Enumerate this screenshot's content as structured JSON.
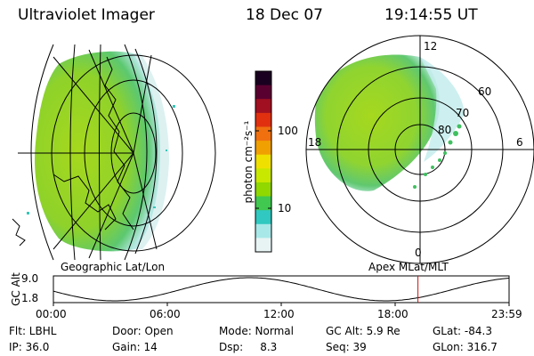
{
  "header": {
    "title": "Ultraviolet Imager",
    "date": "18 Dec 07",
    "time": "19:14:55 UT"
  },
  "colorbar": {
    "unit_label": "photon cm⁻²s⁻¹",
    "ticks": [
      "100",
      "10"
    ],
    "colors": [
      "#1a0020",
      "#5a0030",
      "#a01020",
      "#e03010",
      "#f07010",
      "#f0a000",
      "#f0e000",
      "#c8e800",
      "#90d800",
      "#40c850",
      "#30c8c0",
      "#a8e8e8",
      "#e8f4f4"
    ]
  },
  "left_map": {
    "caption": "Geographic Lat/Lon",
    "fill_color": "#9ad61a"
  },
  "right_map": {
    "caption": "Apex MLat/MLT",
    "labels": {
      "mlt_top": "12",
      "mlt_bottom": "0",
      "mlt_left": "18",
      "mlt_right": "6",
      "lat_60": "60",
      "lat_70": "70",
      "lat_80": "80"
    }
  },
  "timeline": {
    "axis_label": "GC Alt",
    "y_ticks": [
      "9.0",
      "1.8"
    ],
    "x_ticks": [
      "00:00",
      "06:00",
      "12:00",
      "18:00",
      "23:59"
    ],
    "current_fraction": 0.8
  },
  "info": {
    "flt": "Flt: LBHL",
    "ip": "IP: 36.0",
    "door": "Door: Open",
    "gain": "Gain: 14",
    "mode": "Mode: Normal",
    "dsp": "Dsp:     8.3",
    "gcalt": "GC Alt: 5.9 Re",
    "seq": "Seq: 39",
    "glat": "GLat: -84.3",
    "glon": "GLon: 316.7"
  }
}
